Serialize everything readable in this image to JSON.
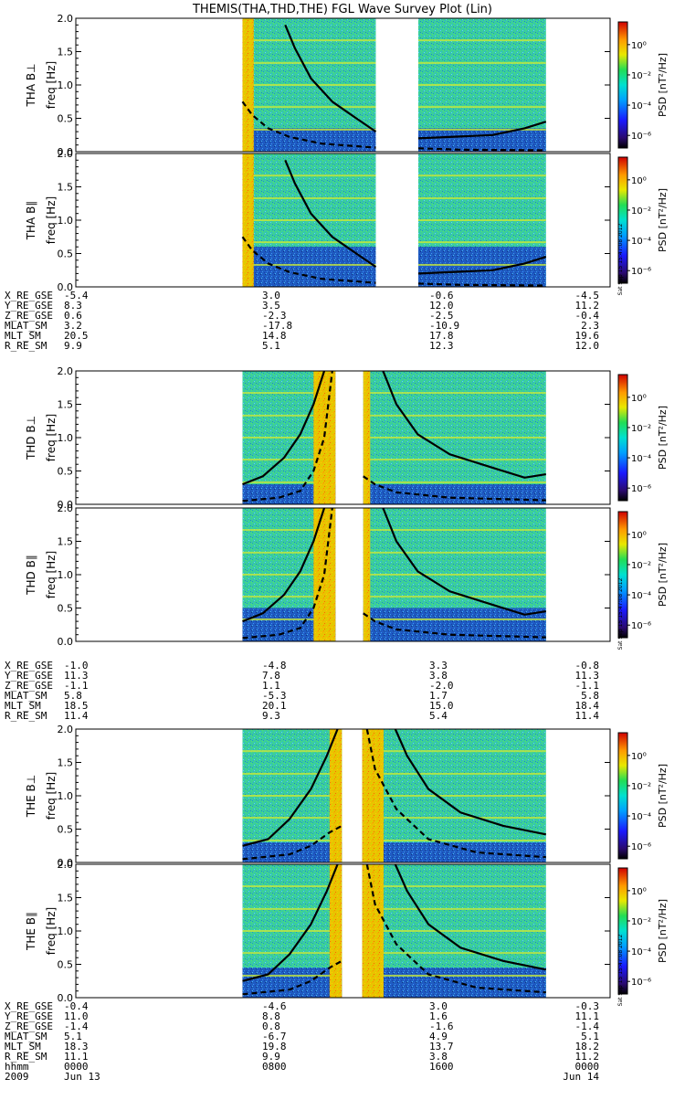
{
  "title": "THEMIS(THA,THD,THE) FGL Wave Survey Plot (Lin)",
  "colors": {
    "palette": [
      "#000000",
      "#1a1aff",
      "#00c8ff",
      "#22dd88",
      "#e8e800",
      "#ff9900",
      "#e00000"
    ],
    "background_blue": "#1040c0",
    "spectrum_green": "#33dd88"
  },
  "colorbar": {
    "label": "PSD [nT²/Hz]",
    "ticks": [
      "10⁰",
      "10⁻²",
      "10⁻⁴",
      "10⁻⁶"
    ],
    "stamp": "Sat Sep 15 15:47:08 2012"
  },
  "chart_data": [
    {
      "type": "heatmap",
      "probe": "THA",
      "component": "B⊥",
      "ylabel_probe": "THA B⊥",
      "ylabel_units": "freq [Hz]",
      "yticks": [
        "0.0",
        "0.5",
        "1.0",
        "1.5",
        "2.0"
      ],
      "ylim": [
        0,
        2.0
      ],
      "data_spans": [
        [
          0.2656,
          0.4722
        ],
        [
          0.4583,
          0.8056
        ]
      ],
      "gap": [
        0.4722,
        0.4583
      ],
      "bright_bands": [
        [
          0.2656,
          0.2847
        ]
      ],
      "curves": [
        {
          "style": "solid",
          "points": [
            [
              0.3,
              2.0
            ],
            [
              0.33,
              1.6
            ],
            [
              0.38,
              0.95
            ],
            [
              0.43,
              0.55
            ],
            [
              0.47,
              0.3
            ]
          ]
        },
        {
          "style": "dash",
          "points": [
            [
              0.27,
              0.7
            ],
            [
              0.3,
              0.4
            ],
            [
              0.35,
              0.2
            ],
            [
              0.47,
              0.05
            ]
          ]
        }
      ]
    },
    {
      "type": "heatmap",
      "probe": "THA",
      "component": "B∥",
      "ylabel_probe": "THA B∥",
      "ylabel_units": "freq [Hz]",
      "yticks": [
        "0.0",
        "0.5",
        "1.0",
        "1.5",
        "2.0"
      ],
      "ylim": [
        0,
        2.0
      ]
    },
    {
      "type": "heatmap",
      "probe": "THD",
      "component": "B⊥",
      "ylabel_probe": "THD B⊥",
      "ylabel_units": "freq [Hz]",
      "yticks": [
        "0.0",
        "0.5",
        "1.0",
        "1.5",
        "2.0"
      ],
      "ylim": [
        0,
        2.0
      ]
    },
    {
      "type": "heatmap",
      "probe": "THD",
      "component": "B∥",
      "ylabel_probe": "THD B∥",
      "ylabel_units": "freq [Hz]",
      "yticks": [
        "0.0",
        "0.5",
        "1.0",
        "1.5",
        "2.0"
      ],
      "ylim": [
        0,
        2.0
      ]
    },
    {
      "type": "heatmap",
      "probe": "THE",
      "component": "B⊥",
      "ylabel_probe": "THE B⊥",
      "ylabel_units": "freq [Hz]",
      "yticks": [
        "0.0",
        "0.5",
        "1.0",
        "1.5",
        "2.0"
      ],
      "ylim": [
        0,
        2.0
      ]
    },
    {
      "type": "heatmap",
      "probe": "THE",
      "component": "B∥",
      "ylabel_probe": "THE B∥",
      "ylabel_units": "freq [Hz]",
      "yticks": [
        "0.0",
        "0.5",
        "1.0",
        "1.5",
        "2.0"
      ],
      "ylim": [
        0,
        2.0
      ]
    }
  ],
  "ephemeris": [
    {
      "probe": "THA",
      "rows": [
        {
          "label": "X_RE_GSE",
          "values": [
            "-5.4",
            "3.0",
            "-0.6",
            "-4.5"
          ]
        },
        {
          "label": "Y_RE_GSE",
          "values": [
            "8.3",
            "3.5",
            "12.0",
            "11.2"
          ]
        },
        {
          "label": "Z_RE_GSE",
          "values": [
            "0.6",
            "-2.3",
            "-2.5",
            "-0.4"
          ]
        },
        {
          "label": "MLAT_SM",
          "values": [
            "3.2",
            "-17.8",
            "-10.9",
            "2.3"
          ]
        },
        {
          "label": "MLT_SM",
          "values": [
            "20.5",
            "14.8",
            "17.8",
            "19.6"
          ]
        },
        {
          "label": "R_RE_SM",
          "values": [
            "9.9",
            "5.1",
            "12.3",
            "12.0"
          ]
        }
      ]
    },
    {
      "probe": "THD",
      "rows": [
        {
          "label": "X_RE_GSE",
          "values": [
            "-1.0",
            "-4.8",
            "3.3",
            "-0.8"
          ]
        },
        {
          "label": "Y_RE_GSE",
          "values": [
            "11.3",
            "7.8",
            "3.8",
            "11.3"
          ]
        },
        {
          "label": "Z_RE_GSE",
          "values": [
            "-1.1",
            "1.1",
            "-2.0",
            "-1.1"
          ]
        },
        {
          "label": "MLAT_SM",
          "values": [
            "5.8",
            "-5.3",
            "1.7",
            "5.8"
          ]
        },
        {
          "label": "MLT_SM",
          "values": [
            "18.5",
            "20.1",
            "15.0",
            "18.4"
          ]
        },
        {
          "label": "R_RE_SM",
          "values": [
            "11.4",
            "9.3",
            "5.4",
            "11.4"
          ]
        }
      ]
    },
    {
      "probe": "THE",
      "rows": [
        {
          "label": "X_RE_GSE",
          "values": [
            "-0.4",
            "-4.6",
            "3.0",
            "-0.3"
          ]
        },
        {
          "label": "Y_RE_GSE",
          "values": [
            "11.0",
            "8.8",
            "1.6",
            "11.1"
          ]
        },
        {
          "label": "Z_RE_GSE",
          "values": [
            "-1.4",
            "0.8",
            "-1.6",
            "-1.4"
          ]
        },
        {
          "label": "MLAT_SM",
          "values": [
            "5.1",
            "-6.7",
            "4.9",
            "5.1"
          ]
        },
        {
          "label": "MLT_SM",
          "values": [
            "18.3",
            "19.8",
            "13.7",
            "18.2"
          ]
        },
        {
          "label": "R_RE_SM",
          "values": [
            "11.1",
            "9.9",
            "3.8",
            "11.2"
          ]
        }
      ],
      "time_rows": [
        {
          "label": "hhmm",
          "values": [
            "0000",
            "0800",
            "1600",
            "0000"
          ]
        }
      ],
      "date_row": {
        "label": "2009",
        "start": "Jun 13",
        "end": "Jun 14"
      }
    }
  ]
}
